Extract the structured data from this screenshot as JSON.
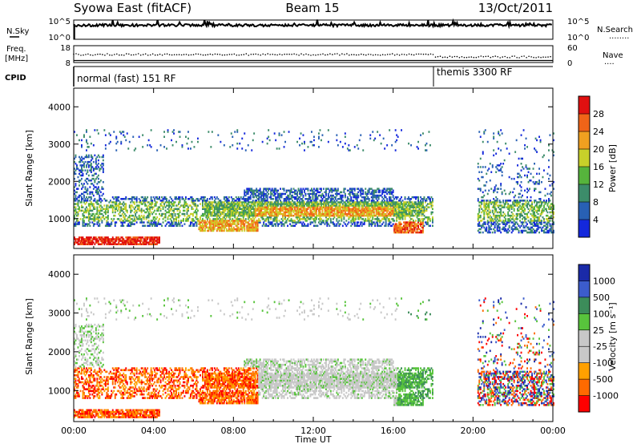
{
  "header": {
    "title": "Syowa East (fitACF)",
    "beam": "Beam 15",
    "date": "13/Oct/2011"
  },
  "labels": {
    "n_sky": "N.Sky",
    "n_search": "N.Search",
    "n_search_marker": "........",
    "freq": "Freq.",
    "freq_unit": "[MHz]",
    "nave": "Nave",
    "nave_marker": "....",
    "cpid": "CPID"
  },
  "axis_ticks": {
    "noise_top": "10^5",
    "noise_bottom": "10^0",
    "freq_top": "18",
    "freq_bottom": "8",
    "nave_top": "60",
    "nave_bottom": "0"
  },
  "cpid_segments": [
    {
      "label": "normal (fast) 151 RF",
      "start_hour": 0
    },
    {
      "label": "themis 3300 RF",
      "start_hour": 18
    }
  ],
  "colors": {
    "power": [
      "#1428dc",
      "#2860b4",
      "#3c8c6a",
      "#56b43c",
      "#c8d02a",
      "#f0a020",
      "#f06418",
      "#e01010"
    ],
    "velocity": [
      "#ff0000",
      "#ff6a00",
      "#ffa000",
      "#c8c8c8",
      "#c8c8c8",
      "#58c43c",
      "#3c8c5a",
      "#3c5ccc",
      "#1a2aa8"
    ]
  },
  "chart_data": [
    {
      "type": "heatmap",
      "quantity": "Power",
      "ylabel": "Slant Range [km]",
      "ylim": [
        200,
        4500
      ],
      "y_ticks": [
        "1000",
        "2000",
        "3000",
        "4000"
      ],
      "xlim_hours": [
        0,
        24
      ],
      "colorbar_label": "Power [dB]",
      "colorbar_ticks": [
        "4",
        "8",
        "12",
        "16",
        "20",
        "24",
        "28"
      ],
      "colorbar_range": [
        0,
        32
      ]
    },
    {
      "type": "heatmap",
      "quantity": "Velocity",
      "ylabel": "Slant Range [km]",
      "xlabel": "Time UT",
      "ylim": [
        200,
        4500
      ],
      "y_ticks": [
        "1000",
        "2000",
        "3000",
        "4000"
      ],
      "x_ticks": [
        "00:00",
        "04:00",
        "08:00",
        "12:00",
        "16:00",
        "20:00",
        "00:00"
      ],
      "xlim_hours": [
        0,
        24
      ],
      "colorbar_label": "Velocity [m s⁻¹]",
      "colorbar_ticks": [
        "-1000",
        "-500",
        "-100",
        "-25",
        "25",
        "100",
        "500",
        "1000"
      ]
    },
    {
      "type": "line",
      "quantity": "Noise (N.Sky / N.Search)",
      "yscale": "log",
      "ylim": [
        1,
        100000
      ]
    },
    {
      "type": "scatter",
      "quantity": "Frequency / Nave",
      "ylim_freq": [
        8,
        18
      ],
      "ylim_nave": [
        0,
        60
      ]
    }
  ]
}
